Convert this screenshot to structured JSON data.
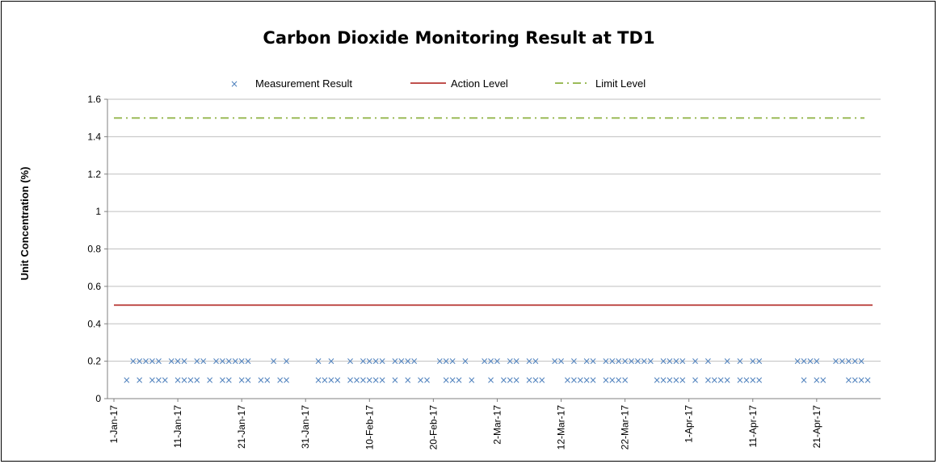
{
  "chart_data": {
    "type": "scatter",
    "title": "Carbon Dioxide Monitoring Result at TD1",
    "xlabel": "",
    "ylabel": "Unit Concentration (%)",
    "ylim": [
      0,
      1.6
    ],
    "yticks": [
      0,
      0.2,
      0.4,
      0.6,
      0.8,
      1,
      1.2,
      1.4,
      1.6
    ],
    "xlim": [
      "2017-01-01",
      "2017-04-30"
    ],
    "xticks": [
      {
        "date": "2017-01-01",
        "label": "1-Jan-17"
      },
      {
        "date": "2017-01-11",
        "label": "11-Jan-17"
      },
      {
        "date": "2017-01-21",
        "label": "21-Jan-17"
      },
      {
        "date": "2017-01-31",
        "label": "31-Jan-17"
      },
      {
        "date": "2017-02-10",
        "label": "10-Feb-17"
      },
      {
        "date": "2017-02-20",
        "label": "20-Feb-17"
      },
      {
        "date": "2017-03-02",
        "label": "2-Mar-17"
      },
      {
        "date": "2017-03-12",
        "label": "12-Mar-17"
      },
      {
        "date": "2017-03-22",
        "label": "22-Mar-17"
      },
      {
        "date": "2017-04-01",
        "label": "1-Apr-17"
      },
      {
        "date": "2017-04-11",
        "label": "11-Apr-17"
      },
      {
        "date": "2017-04-21",
        "label": "21-Apr-17"
      }
    ],
    "grid": "horizontal",
    "legend": "top",
    "series": [
      {
        "name": "Measurement Result",
        "type": "scatter",
        "marker": "x",
        "color": "#4F81BD",
        "points": [
          {
            "x": "2017-01-03",
            "y": 0.1,
            "label": "×"
          },
          {
            "x": "2017-01-04",
            "y": 0.2,
            "label": "×"
          },
          {
            "x": "2017-01-05",
            "y": 0.2,
            "label": "×"
          },
          {
            "x": "2017-01-05",
            "y": 0.1,
            "label": "×"
          },
          {
            "x": "2017-01-06",
            "y": 0.2,
            "label": "×"
          },
          {
            "x": "2017-01-07",
            "y": 0.1,
            "label": "×"
          },
          {
            "x": "2017-01-07",
            "y": 0.2,
            "label": "×"
          },
          {
            "x": "2017-01-08",
            "y": 0.1,
            "label": "×"
          },
          {
            "x": "2017-01-08",
            "y": 0.2,
            "label": "×"
          },
          {
            "x": "2017-01-09",
            "y": 0.1,
            "label": "×"
          },
          {
            "x": "2017-01-10",
            "y": 0.2,
            "label": "×"
          },
          {
            "x": "2017-01-11",
            "y": 0.2,
            "label": "×"
          },
          {
            "x": "2017-01-11",
            "y": 0.1,
            "label": "×"
          },
          {
            "x": "2017-01-12",
            "y": 0.2,
            "label": "×"
          },
          {
            "x": "2017-01-12",
            "y": 0.1,
            "label": "×"
          },
          {
            "x": "2017-01-13",
            "y": 0.1,
            "label": "×"
          },
          {
            "x": "2017-01-14",
            "y": 0.2,
            "label": "×"
          },
          {
            "x": "2017-01-14",
            "y": 0.1,
            "label": "×"
          },
          {
            "x": "2017-01-15",
            "y": 0.2,
            "label": "×"
          },
          {
            "x": "2017-01-16",
            "y": 0.1,
            "label": "×"
          },
          {
            "x": "2017-01-17",
            "y": 0.2,
            "label": "×"
          },
          {
            "x": "2017-01-18",
            "y": 0.2,
            "label": "×"
          },
          {
            "x": "2017-01-18",
            "y": 0.1,
            "label": "×"
          },
          {
            "x": "2017-01-19",
            "y": 0.2,
            "label": "×"
          },
          {
            "x": "2017-01-19",
            "y": 0.1,
            "label": "×"
          },
          {
            "x": "2017-01-20",
            "y": 0.2,
            "label": "×"
          },
          {
            "x": "2017-01-21",
            "y": 0.1,
            "label": "×"
          },
          {
            "x": "2017-01-21",
            "y": 0.2,
            "label": "×"
          },
          {
            "x": "2017-01-22",
            "y": 0.1,
            "label": "×"
          },
          {
            "x": "2017-01-22",
            "y": 0.2,
            "label": "×"
          },
          {
            "x": "2017-01-24",
            "y": 0.1,
            "label": "×"
          },
          {
            "x": "2017-01-25",
            "y": 0.1,
            "label": "×"
          },
          {
            "x": "2017-01-26",
            "y": 0.2,
            "label": "×"
          },
          {
            "x": "2017-01-27",
            "y": 0.1,
            "label": "×"
          },
          {
            "x": "2017-01-28",
            "y": 0.1,
            "label": "×"
          },
          {
            "x": "2017-01-28",
            "y": 0.2,
            "label": "×"
          },
          {
            "x": "2017-02-02",
            "y": 0.2,
            "label": "×"
          },
          {
            "x": "2017-02-02",
            "y": 0.1,
            "label": "×"
          },
          {
            "x": "2017-02-03",
            "y": 0.1,
            "label": "×"
          },
          {
            "x": "2017-02-04",
            "y": 0.2,
            "label": "×"
          },
          {
            "x": "2017-02-04",
            "y": 0.1,
            "label": "×"
          },
          {
            "x": "2017-02-05",
            "y": 0.1,
            "label": "×"
          },
          {
            "x": "2017-02-07",
            "y": 0.2,
            "label": "×"
          },
          {
            "x": "2017-02-07",
            "y": 0.1,
            "label": "×"
          },
          {
            "x": "2017-02-08",
            "y": 0.1,
            "label": "×"
          },
          {
            "x": "2017-02-09",
            "y": 0.2,
            "label": "×"
          },
          {
            "x": "2017-02-09",
            "y": 0.1,
            "label": "×"
          },
          {
            "x": "2017-02-10",
            "y": 0.2,
            "label": "×"
          },
          {
            "x": "2017-02-10",
            "y": 0.1,
            "label": "×"
          },
          {
            "x": "2017-02-11",
            "y": 0.2,
            "label": "×"
          },
          {
            "x": "2017-02-11",
            "y": 0.1,
            "label": "×"
          },
          {
            "x": "2017-02-12",
            "y": 0.2,
            "label": "×"
          },
          {
            "x": "2017-02-12",
            "y": 0.1,
            "label": "×"
          },
          {
            "x": "2017-02-14",
            "y": 0.2,
            "label": "×"
          },
          {
            "x": "2017-02-14",
            "y": 0.1,
            "label": "×"
          },
          {
            "x": "2017-02-15",
            "y": 0.2,
            "label": "×"
          },
          {
            "x": "2017-02-16",
            "y": 0.2,
            "label": "×"
          },
          {
            "x": "2017-02-16",
            "y": 0.1,
            "label": "×"
          },
          {
            "x": "2017-02-17",
            "y": 0.2,
            "label": "×"
          },
          {
            "x": "2017-02-18",
            "y": 0.1,
            "label": "×"
          },
          {
            "x": "2017-02-19",
            "y": 0.1,
            "label": "×"
          },
          {
            "x": "2017-02-21",
            "y": 0.2,
            "label": "×"
          },
          {
            "x": "2017-02-22",
            "y": 0.2,
            "label": "×"
          },
          {
            "x": "2017-02-22",
            "y": 0.1,
            "label": "×"
          },
          {
            "x": "2017-02-23",
            "y": 0.2,
            "label": "×"
          },
          {
            "x": "2017-02-23",
            "y": 0.1,
            "label": "×"
          },
          {
            "x": "2017-02-24",
            "y": 0.1,
            "label": "×"
          },
          {
            "x": "2017-02-25",
            "y": 0.2,
            "label": "×"
          },
          {
            "x": "2017-02-26",
            "y": 0.1,
            "label": "×"
          },
          {
            "x": "2017-02-28",
            "y": 0.2,
            "label": "×"
          },
          {
            "x": "2017-03-01",
            "y": 0.2,
            "label": "×"
          },
          {
            "x": "2017-03-01",
            "y": 0.1,
            "label": "×"
          },
          {
            "x": "2017-03-02",
            "y": 0.2,
            "label": "×"
          },
          {
            "x": "2017-03-03",
            "y": 0.1,
            "label": "×"
          },
          {
            "x": "2017-03-04",
            "y": 0.2,
            "label": "×"
          },
          {
            "x": "2017-03-04",
            "y": 0.1,
            "label": "×"
          },
          {
            "x": "2017-03-05",
            "y": 0.2,
            "label": "×"
          },
          {
            "x": "2017-03-05",
            "y": 0.1,
            "label": "×"
          },
          {
            "x": "2017-03-07",
            "y": 0.2,
            "label": "×"
          },
          {
            "x": "2017-03-07",
            "y": 0.1,
            "label": "×"
          },
          {
            "x": "2017-03-08",
            "y": 0.2,
            "label": "×"
          },
          {
            "x": "2017-03-08",
            "y": 0.1,
            "label": "×"
          },
          {
            "x": "2017-03-09",
            "y": 0.1,
            "label": "×"
          },
          {
            "x": "2017-03-11",
            "y": 0.2,
            "label": "×"
          },
          {
            "x": "2017-03-12",
            "y": 0.2,
            "label": "×"
          },
          {
            "x": "2017-03-13",
            "y": 0.1,
            "label": "×"
          },
          {
            "x": "2017-03-14",
            "y": 0.2,
            "label": "×"
          },
          {
            "x": "2017-03-14",
            "y": 0.1,
            "label": "×"
          },
          {
            "x": "2017-03-15",
            "y": 0.1,
            "label": "×"
          },
          {
            "x": "2017-03-16",
            "y": 0.2,
            "label": "×"
          },
          {
            "x": "2017-03-16",
            "y": 0.1,
            "label": "×"
          },
          {
            "x": "2017-03-17",
            "y": 0.2,
            "label": "×"
          },
          {
            "x": "2017-03-17",
            "y": 0.1,
            "label": "×"
          },
          {
            "x": "2017-03-19",
            "y": 0.2,
            "label": "×"
          },
          {
            "x": "2017-03-19",
            "y": 0.1,
            "label": "×"
          },
          {
            "x": "2017-03-20",
            "y": 0.2,
            "label": "×"
          },
          {
            "x": "2017-03-20",
            "y": 0.1,
            "label": "×"
          },
          {
            "x": "2017-03-21",
            "y": 0.2,
            "label": "×"
          },
          {
            "x": "2017-03-21",
            "y": 0.1,
            "label": "×"
          },
          {
            "x": "2017-03-22",
            "y": 0.2,
            "label": "×"
          },
          {
            "x": "2017-03-22",
            "y": 0.1,
            "label": "×"
          },
          {
            "x": "2017-03-23",
            "y": 0.2,
            "label": "×"
          },
          {
            "x": "2017-03-24",
            "y": 0.2,
            "label": "×"
          },
          {
            "x": "2017-03-25",
            "y": 0.2,
            "label": "×"
          },
          {
            "x": "2017-03-26",
            "y": 0.2,
            "label": "×"
          },
          {
            "x": "2017-03-27",
            "y": 0.1,
            "label": "×"
          },
          {
            "x": "2017-03-28",
            "y": 0.2,
            "label": "×"
          },
          {
            "x": "2017-03-28",
            "y": 0.1,
            "label": "×"
          },
          {
            "x": "2017-03-29",
            "y": 0.2,
            "label": "×"
          },
          {
            "x": "2017-03-29",
            "y": 0.1,
            "label": "×"
          },
          {
            "x": "2017-03-30",
            "y": 0.2,
            "label": "×"
          },
          {
            "x": "2017-03-30",
            "y": 0.1,
            "label": "×"
          },
          {
            "x": "2017-03-31",
            "y": 0.2,
            "label": "×"
          },
          {
            "x": "2017-03-31",
            "y": 0.1,
            "label": "×"
          },
          {
            "x": "2017-04-02",
            "y": 0.2,
            "label": "×"
          },
          {
            "x": "2017-04-02",
            "y": 0.1,
            "label": "×"
          },
          {
            "x": "2017-04-04",
            "y": 0.2,
            "label": "×"
          },
          {
            "x": "2017-04-04",
            "y": 0.1,
            "label": "×"
          },
          {
            "x": "2017-04-05",
            "y": 0.1,
            "label": "×"
          },
          {
            "x": "2017-04-06",
            "y": 0.1,
            "label": "×"
          },
          {
            "x": "2017-04-07",
            "y": 0.2,
            "label": "×"
          },
          {
            "x": "2017-04-07",
            "y": 0.1,
            "label": "×"
          },
          {
            "x": "2017-04-09",
            "y": 0.2,
            "label": "×"
          },
          {
            "x": "2017-04-09",
            "y": 0.1,
            "label": "×"
          },
          {
            "x": "2017-04-10",
            "y": 0.1,
            "label": "×"
          },
          {
            "x": "2017-04-11",
            "y": 0.2,
            "label": "×"
          },
          {
            "x": "2017-04-11",
            "y": 0.1,
            "label": "×"
          },
          {
            "x": "2017-04-12",
            "y": 0.2,
            "label": "×"
          },
          {
            "x": "2017-04-12",
            "y": 0.1,
            "label": "×"
          },
          {
            "x": "2017-04-18",
            "y": 0.2,
            "label": "×"
          },
          {
            "x": "2017-04-19",
            "y": 0.2,
            "label": "×"
          },
          {
            "x": "2017-04-19",
            "y": 0.1,
            "label": "×"
          },
          {
            "x": "2017-04-20",
            "y": 0.2,
            "label": "×"
          },
          {
            "x": "2017-04-21",
            "y": 0.2,
            "label": "×"
          },
          {
            "x": "2017-04-21",
            "y": 0.1,
            "label": "×"
          },
          {
            "x": "2017-04-22",
            "y": 0.1,
            "label": "×"
          },
          {
            "x": "2017-04-24",
            "y": 0.2,
            "label": "×"
          },
          {
            "x": "2017-04-25",
            "y": 0.2,
            "label": "×"
          },
          {
            "x": "2017-04-26",
            "y": 0.2,
            "label": "×"
          },
          {
            "x": "2017-04-26",
            "y": 0.1,
            "label": "×"
          },
          {
            "x": "2017-04-27",
            "y": 0.2,
            "label": "×"
          },
          {
            "x": "2017-04-27",
            "y": 0.1,
            "label": "×"
          },
          {
            "x": "2017-04-28",
            "y": 0.2,
            "label": "×"
          },
          {
            "x": "2017-04-28",
            "y": 0.1,
            "label": "×"
          },
          {
            "x": "2017-04-29",
            "y": 0.1,
            "label": "×"
          }
        ]
      },
      {
        "name": "Action Level",
        "type": "line",
        "style": "solid",
        "color": "#C0504D",
        "value": 0.5
      },
      {
        "name": "Limit Level",
        "type": "line",
        "style": "dash-dot",
        "color": "#9BBB59",
        "value": 1.5
      }
    ]
  }
}
